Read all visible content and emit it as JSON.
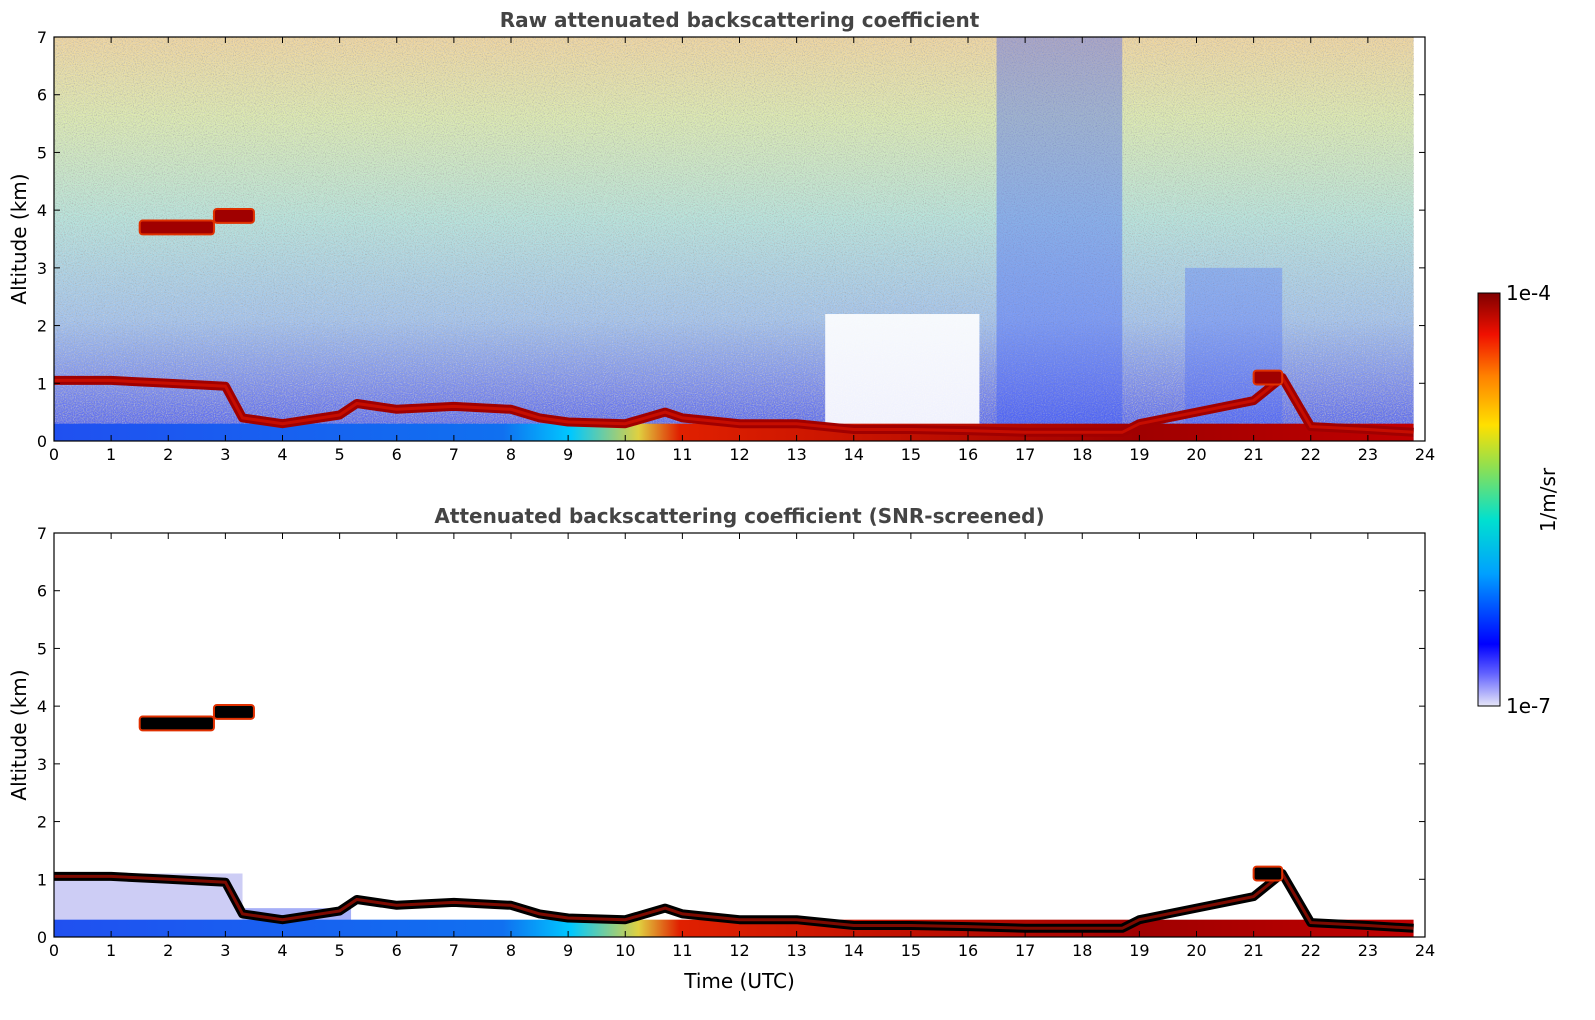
{
  "chart_data": [
    {
      "type": "heatmap",
      "title": "Raw attenuated backscattering coefficient",
      "xlabel": "",
      "ylabel": "Altitude (km)",
      "xlim": [
        0,
        24
      ],
      "ylim": [
        0,
        7
      ],
      "x_ticks": [
        "0",
        "1",
        "2",
        "3",
        "4",
        "5",
        "6",
        "7",
        "8",
        "9",
        "10",
        "11",
        "12",
        "13",
        "14",
        "15",
        "16",
        "17",
        "18",
        "19",
        "20",
        "21",
        "22",
        "23",
        "24"
      ],
      "y_ticks": [
        "0",
        "1",
        "2",
        "3",
        "4",
        "5",
        "6",
        "7"
      ],
      "features": [
        {
          "name": "boundary-layer-top",
          "points": [
            [
              0,
              1.05
            ],
            [
              1,
              1.05
            ],
            [
              2,
              1.0
            ],
            [
              3,
              0.95
            ],
            [
              3.3,
              0.4
            ],
            [
              4,
              0.3
            ],
            [
              5,
              0.45
            ],
            [
              5.3,
              0.65
            ],
            [
              6,
              0.55
            ],
            [
              7,
              0.6
            ],
            [
              8,
              0.55
            ],
            [
              8.5,
              0.4
            ],
            [
              9,
              0.33
            ],
            [
              10,
              0.3
            ],
            [
              10.7,
              0.5
            ],
            [
              11,
              0.4
            ],
            [
              12,
              0.3
            ],
            [
              13,
              0.3
            ],
            [
              14,
              0.2
            ],
            [
              15,
              0.2
            ],
            [
              16,
              0.18
            ],
            [
              17,
              0.15
            ],
            [
              18,
              0.15
            ],
            [
              18.7,
              0.15
            ],
            [
              19,
              0.3
            ],
            [
              20,
              0.5
            ],
            [
              21,
              0.7
            ],
            [
              21.5,
              1.1
            ],
            [
              22,
              0.25
            ],
            [
              23,
              0.2
            ],
            [
              23.8,
              0.15
            ]
          ]
        },
        {
          "name": "cloud-layer",
          "x_start": 1.5,
          "x_end": 2.8,
          "altitude": 3.7
        },
        {
          "name": "cloud-layer",
          "x_start": 2.8,
          "x_end": 3.5,
          "altitude": 3.9
        },
        {
          "name": "cloud-layer",
          "x_start": 21.0,
          "x_end": 21.5,
          "altitude": 1.1
        }
      ]
    },
    {
      "type": "heatmap",
      "title": "Attenuated backscattering coefficient (SNR-screened)",
      "xlabel": "Time (UTC)",
      "ylabel": "Altitude (km)",
      "xlim": [
        0,
        24
      ],
      "ylim": [
        0,
        7
      ],
      "x_ticks": [
        "0",
        "1",
        "2",
        "3",
        "4",
        "5",
        "6",
        "7",
        "8",
        "9",
        "10",
        "11",
        "12",
        "13",
        "14",
        "15",
        "16",
        "17",
        "18",
        "19",
        "20",
        "21",
        "22",
        "23",
        "24"
      ],
      "y_ticks": [
        "0",
        "1",
        "2",
        "3",
        "4",
        "5",
        "6",
        "7"
      ]
    }
  ],
  "colorbar": {
    "label": "1/m/sr",
    "max_label": "1e-4",
    "min_label": "1e-7",
    "colormap": "jet",
    "colors": [
      "#e8e8f8",
      "#0000ff",
      "#00aaff",
      "#00e0c0",
      "#b0e040",
      "#ffdd00",
      "#ff8800",
      "#ee1100",
      "#800000"
    ]
  }
}
